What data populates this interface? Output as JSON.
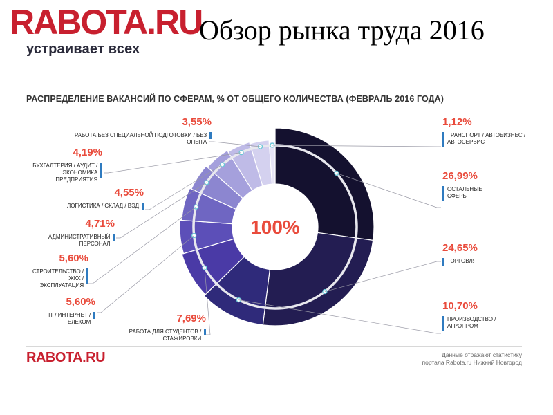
{
  "header": {
    "logo_text": "RABOTA.RU",
    "logo_tagline": "устраивает всех",
    "slide_title": "Обзор рынка труда 2016"
  },
  "chart_data": {
    "type": "pie",
    "title": "РАСПРЕДЕЛЕНИЕ ВАКАНСИЙ ПО СФЕРАМ, % ОТ ОБЩЕГО КОЛИЧЕСТВА (ФЕВРАЛЬ 2016 ГОДА)",
    "center_label": "100%",
    "slices": [
      {
        "category": "ОСТАЛЬНЫЕ СФЕРЫ",
        "value": 26.99,
        "label": "26,99%",
        "color": "#14112f"
      },
      {
        "category": "ТОРГОВЛЯ",
        "value": 24.65,
        "label": "24,65%",
        "color": "#231d52"
      },
      {
        "category": "ПРОИЗВОДСТВО / АГРОПРОМ",
        "value": 10.7,
        "label": "10,70%",
        "color": "#2f2a7a"
      },
      {
        "category": "РАБОТА ДЛЯ СТУДЕНТОВ / СТАЖИРОВКИ",
        "value": 7.69,
        "label": "7,69%",
        "color": "#4a3aa6"
      },
      {
        "category": "IT / ИНТЕРНЕТ / ТЕЛЕКОМ",
        "value": 5.6,
        "label": "5,60%",
        "color": "#5c4fb8"
      },
      {
        "category": "СТРОИТЕЛЬСТВО / ЖКХ / ЭКСПЛУАТАЦИЯ",
        "value": 5.6,
        "label": "5,60%",
        "color": "#6f66c2"
      },
      {
        "category": "АДМИНИСТРАТИВНЫЙ ПЕРСОНАЛ",
        "value": 4.71,
        "label": "4,71%",
        "color": "#8c86d0"
      },
      {
        "category": "ЛОГИСТИКА / СКЛАД / ВЭД",
        "value": 4.55,
        "label": "4,55%",
        "color": "#a5a0dc"
      },
      {
        "category": "БУХГАЛТЕРИЯ / АУДИТ / ЭКОНОМИКА ПРЕДПРИЯТИЯ",
        "value": 4.19,
        "label": "4,19%",
        "color": "#bfbbe7"
      },
      {
        "category": "РАБОТА БЕЗ СПЕЦИАЛЬНОЙ ПОДГОТОВКИ / БЕЗ ОПЫТА",
        "value": 3.55,
        "label": "3,55%",
        "color": "#d4d1ef"
      },
      {
        "category": "ТРАНСПОРТ / АВТОБИЗНЕС / АВТОСЕРВИС",
        "value": 1.12,
        "label": "1,12%",
        "color": "#e6e4f5"
      }
    ]
  },
  "labels": {
    "right": [
      {
        "pct": "1,12%",
        "lines": [
          "ТРАНСПОРТ / АВТОБИЗНЕС /",
          "АВТОСЕРВИС"
        ]
      },
      {
        "pct": "26,99%",
        "lines": [
          "ОСТАЛЬНЫЕ",
          "СФЕРЫ"
        ]
      },
      {
        "pct": "24,65%",
        "lines": [
          "ТОРГОВЛЯ"
        ]
      },
      {
        "pct": "10,70%",
        "lines": [
          "ПРОИЗВОДСТВО /",
          "АГРОПРОМ"
        ]
      }
    ],
    "left": [
      {
        "pct": "3,55%",
        "lines": [
          "РАБОТА БЕЗ СПЕЦИАЛЬНОЙ ПОДГОТОВКИ / БЕЗ ОПЫТА"
        ]
      },
      {
        "pct": "4,19%",
        "lines": [
          "БУХГАЛТЕРИЯ / АУДИТ /",
          "ЭКОНОМИКА ПРЕДПРИЯТИЯ"
        ]
      },
      {
        "pct": "4,55%",
        "lines": [
          "ЛОГИСТИКА / СКЛАД / ВЭД"
        ]
      },
      {
        "pct": "4,71%",
        "lines": [
          "АДМИНИСТРАТИВНЫЙ ПЕРСОНАЛ"
        ]
      },
      {
        "pct": "5,60%",
        "lines": [
          "СТРОИТЕЛЬСТВО /",
          "ЖКХ / ЭКСПЛУАТАЦИЯ"
        ]
      },
      {
        "pct": "5,60%",
        "lines": [
          "IT / ИНТЕРНЕТ / ТЕЛЕКОМ"
        ]
      },
      {
        "pct": "7,69%",
        "lines": [
          "РАБОТА ДЛЯ СТУДЕНТОВ / СТАЖИРОВКИ"
        ]
      }
    ]
  },
  "footer": {
    "logo_text": "RABOTA.RU",
    "note_line1": "Данные отражают статистику",
    "note_line2": "портала Rabota.ru Нижний Новгород"
  },
  "colors": {
    "brand_red": "#c8202f",
    "pct_red": "#e94b3c",
    "marker_blue": "#2f7bc0"
  }
}
